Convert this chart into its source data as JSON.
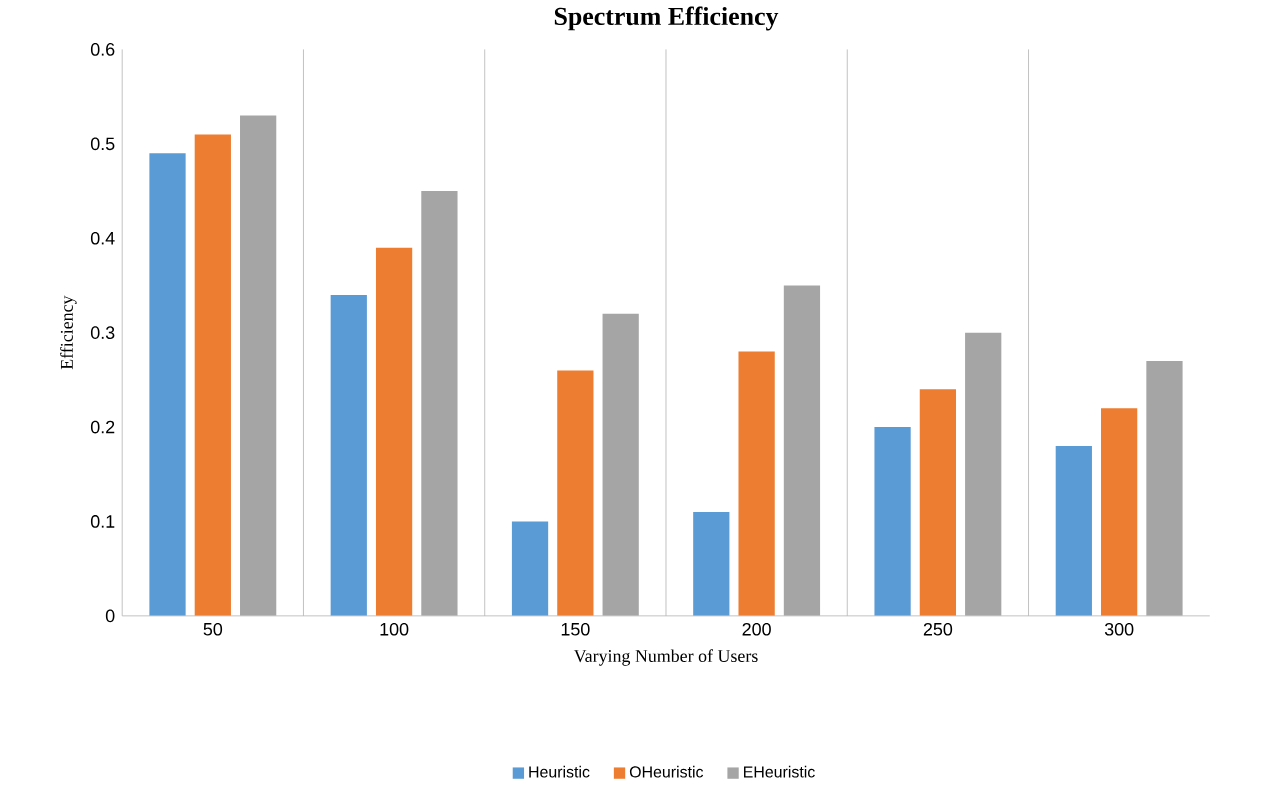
{
  "chart_data": {
    "type": "bar",
    "title": "Spectrum Efficiency",
    "xlabel": "Varying Number of Users",
    "ylabel": "Efficiency",
    "categories": [
      "50",
      "100",
      "150",
      "200",
      "250",
      "300"
    ],
    "series": [
      {
        "name": "Heuristic",
        "color": "#5b9bd5",
        "values": [
          0.49,
          0.34,
          0.1,
          0.11,
          0.2,
          0.18
        ]
      },
      {
        "name": "OHeuristic",
        "color": "#ed7d31",
        "values": [
          0.51,
          0.39,
          0.26,
          0.28,
          0.24,
          0.22
        ]
      },
      {
        "name": "EHeuristic",
        "color": "#a5a5a5",
        "values": [
          0.53,
          0.45,
          0.32,
          0.35,
          0.3,
          0.27
        ]
      }
    ],
    "ylim": [
      0,
      0.6
    ],
    "yticks": [
      0,
      0.1,
      0.2,
      0.3,
      0.4,
      0.5,
      0.6
    ],
    "grid": "x",
    "legend": "bottom"
  }
}
